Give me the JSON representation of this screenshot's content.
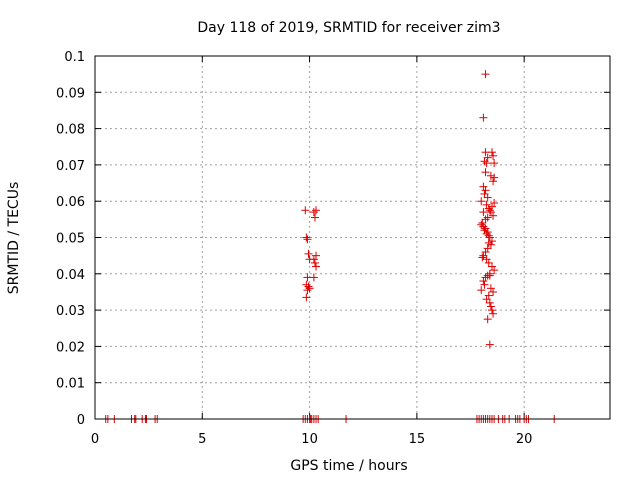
{
  "chart_data": {
    "type": "scatter",
    "title": "Day 118 of 2019, SRMTID for receiver zim3",
    "xlabel": "GPS time / hours",
    "ylabel": "SRMTID / TECUs",
    "xlim": [
      0,
      24
    ],
    "ylim": [
      0,
      0.1
    ],
    "xticks": [
      0,
      5,
      10,
      15,
      20
    ],
    "yticks": [
      0,
      0.01,
      0.02,
      0.03,
      0.04,
      0.05,
      0.06,
      0.07,
      0.08,
      0.09,
      0.1
    ],
    "xtick_labels": [
      "0",
      "5",
      "10",
      "15",
      "20"
    ],
    "ytick_labels": [
      "0",
      "0.01",
      "0.02",
      "0.03",
      "0.04",
      "0.05",
      "0.06",
      "0.07",
      "0.08",
      "0.09",
      "0.1"
    ],
    "grid": true,
    "legend": "none",
    "marker": "plus",
    "color": "#e00000",
    "series": [
      {
        "x": [
          0.5,
          0.6,
          0.9,
          1.7,
          1.85,
          1.9,
          2.2,
          2.35,
          2.4,
          2.8,
          2.9,
          9.7,
          9.8,
          9.9,
          10.0,
          10.05,
          10.1,
          10.2,
          10.3,
          10.4,
          11.7,
          17.8,
          17.9,
          18.0,
          18.1,
          18.2,
          18.3,
          18.4,
          18.5,
          18.6,
          18.8,
          19.0,
          19.1,
          19.3,
          19.6,
          19.7,
          19.8,
          20.0,
          20.1,
          20.2,
          21.4,
          9.8,
          9.85,
          9.9,
          9.95,
          10.0,
          9.9,
          9.85,
          9.95,
          10.0,
          9.9,
          9.85,
          10.2,
          10.25,
          10.3,
          10.3,
          10.2,
          10.25,
          10.3,
          10.2,
          18.2,
          18.1,
          18.2,
          18.3,
          18.15,
          18.25,
          18.2,
          18.5,
          18.55,
          18.6,
          18.45,
          18.6,
          18.55,
          18.1,
          18.2,
          18.15,
          18.3,
          18.0,
          18.25,
          18.35,
          18.1,
          18.6,
          18.5,
          18.4,
          18.45,
          18.55,
          18.3,
          18.2,
          18.05,
          18.0,
          18.1,
          18.15,
          18.25,
          18.35,
          18.4,
          18.5,
          18.45,
          18.3,
          18.2,
          18.1,
          18.05,
          18.25,
          18.35,
          18.5,
          18.6,
          18.4,
          18.3,
          18.2,
          18.1,
          18.15,
          18.45,
          18.55,
          18.35,
          18.25,
          18.4,
          18.45,
          18.5,
          18.55,
          18.3,
          18.4,
          18.0,
          18.2,
          18.3,
          18.4,
          18.35
        ],
        "y": [
          0,
          0,
          0,
          0,
          0,
          0,
          0,
          0,
          0,
          0,
          0,
          0,
          0,
          0,
          0,
          0,
          0,
          0,
          0,
          0,
          0,
          0,
          0,
          0,
          0,
          0,
          0,
          0,
          0,
          0,
          0,
          0,
          0,
          0,
          0,
          0,
          0,
          0,
          0,
          0,
          0,
          0.0575,
          0.05,
          0.0495,
          0.0455,
          0.044,
          0.039,
          0.037,
          0.0365,
          0.036,
          0.0355,
          0.0335,
          0.057,
          0.0555,
          0.0575,
          0.045,
          0.044,
          0.043,
          0.042,
          0.039,
          0.095,
          0.083,
          0.0735,
          0.072,
          0.071,
          0.0705,
          0.068,
          0.0735,
          0.0725,
          0.0705,
          0.067,
          0.0665,
          0.0655,
          0.064,
          0.063,
          0.062,
          0.061,
          0.06,
          0.059,
          0.058,
          0.057,
          0.0595,
          0.0585,
          0.0575,
          0.057,
          0.056,
          0.0555,
          0.055,
          0.054,
          0.0535,
          0.053,
          0.052,
          0.051,
          0.0505,
          0.05,
          0.049,
          0.048,
          0.047,
          0.046,
          0.045,
          0.0445,
          0.044,
          0.043,
          0.042,
          0.041,
          0.04,
          0.0395,
          0.039,
          0.038,
          0.037,
          0.036,
          0.035,
          0.034,
          0.033,
          0.032,
          0.031,
          0.03,
          0.029,
          0.0275,
          0.0205,
          0.0355,
          0.0525,
          0.0515,
          0.0395,
          0.0485
        ]
      }
    ]
  }
}
